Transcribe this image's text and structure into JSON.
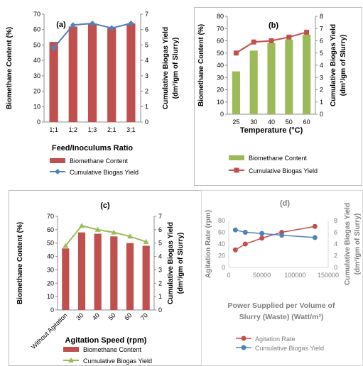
{
  "panels": [
    {
      "label": "(a)",
      "chart_data": {
        "type": "bar",
        "categories": [
          "1;1",
          "1;2",
          "1;3",
          "2;1",
          "3;1"
        ],
        "series": [
          {
            "name": "Biomethane Content",
            "kind": "bar",
            "axis": "left",
            "color": "#c0504d",
            "values": [
              52,
              62,
              64,
              61,
              64
            ]
          },
          {
            "name": "Cumulative Biogas Yield",
            "kind": "line",
            "axis": "right",
            "color": "#4f81bd",
            "marker": "diamond",
            "values": [
              4.8,
              6.3,
              6.4,
              6.1,
              6.4
            ]
          }
        ],
        "ylabel": "Biomethane Content (%)",
        "y2label": "Cumulative Biogas Yield (dm³/gm of Slurry)",
        "xlabel": "Feed/Inoculums Ratio",
        "ylim": [
          0,
          70
        ],
        "y2lim": [
          0,
          7
        ],
        "yticks": [
          "0",
          "10",
          "20",
          "30",
          "40",
          "50",
          "60",
          "70"
        ],
        "y2ticks": [
          "0",
          "1",
          "2",
          "3",
          "4",
          "5",
          "6",
          "7"
        ],
        "legend": "bottom"
      }
    },
    {
      "label": "(b)",
      "chart_data": {
        "type": "bar",
        "categories": [
          "25",
          "30",
          "40",
          "50",
          "60"
        ],
        "series": [
          {
            "name": "Biomethane Content",
            "kind": "bar",
            "axis": "left",
            "color": "#9bbb59",
            "values": [
              35,
              52,
              58,
              61,
              65
            ]
          },
          {
            "name": "Cumulative Biogas Yield",
            "kind": "line",
            "axis": "right",
            "color": "#c0504d",
            "marker": "square",
            "values": [
              5.0,
              5.9,
              6.0,
              6.3,
              6.7
            ]
          }
        ],
        "ylabel": "Biomethane Content (%)",
        "y2label": "Cumulative Biogas Yield (dm³/gm of Slurry)",
        "xlabel": "Temperature (°C)",
        "ylim": [
          0,
          80
        ],
        "y2lim": [
          0,
          8
        ],
        "yticks": [
          "0",
          "10",
          "20",
          "30",
          "40",
          "50",
          "60",
          "70",
          "80"
        ],
        "y2ticks": [
          "0",
          "1",
          "2",
          "3",
          "4",
          "5",
          "6",
          "7",
          "8"
        ],
        "legend": "bottom"
      }
    },
    {
      "label": "(c)",
      "chart_data": {
        "type": "bar",
        "categories": [
          "Without Agitation",
          "30",
          "40",
          "50",
          "60",
          "70"
        ],
        "series": [
          {
            "name": "Biomethane Content",
            "kind": "bar",
            "axis": "left",
            "color": "#c0504d",
            "values": [
              46,
              58,
              57,
              55,
              50,
              48
            ]
          },
          {
            "name": "Cumulative Biogas Yield",
            "kind": "line",
            "axis": "right",
            "color": "#9bbb59",
            "marker": "triangle",
            "values": [
              4.8,
              6.3,
              6.0,
              5.8,
              5.5,
              5.1
            ]
          }
        ],
        "ylabel": "Biomethane Content (%)",
        "y2label": "Cumulative Biogas Yield (dm³/gm of Slurry)",
        "xlabel": "Agitation Speed (rpm)",
        "ylim": [
          0,
          70
        ],
        "y2lim": [
          0,
          7
        ],
        "yticks": [
          "0",
          "10",
          "20",
          "30",
          "40",
          "50",
          "60",
          "70"
        ],
        "y2ticks": [
          "0",
          "1",
          "2",
          "3",
          "4",
          "5",
          "6",
          "7"
        ],
        "legend": "bottom"
      }
    },
    {
      "label": "(d)",
      "chart_data": {
        "type": "line",
        "x": [
          10000,
          25000,
          50000,
          80000,
          130000
        ],
        "series": [
          {
            "name": "Agitation Rate",
            "axis": "left",
            "color": "#c0504d",
            "marker": "circle",
            "values": [
              30,
              40,
              50,
              60,
              70
            ]
          },
          {
            "name": "Cumulative Biogas Yield",
            "axis": "right",
            "color": "#4f81bd",
            "marker": "circle",
            "values": [
              6.4,
              6.0,
              5.8,
              5.5,
              5.1
            ]
          }
        ],
        "ylabel": "Agitation Rate (rpm)",
        "y2label": "Cumulative Biogas Yield (dm³/gm of Slurry)",
        "xlabel": "Power Supplied per Volume of Slurry (Waste) (Watt/m³)",
        "xlim": [
          0,
          150000
        ],
        "ylim": [
          0,
          80
        ],
        "y2lim": [
          0,
          8
        ],
        "xticks": [
          "0",
          "50000",
          "100000",
          "150000"
        ],
        "yticks": [
          "0",
          "20",
          "40",
          "60",
          "80"
        ],
        "y2ticks": [
          "0",
          "2",
          "4",
          "6",
          "8"
        ],
        "legend": "bottom"
      }
    }
  ]
}
